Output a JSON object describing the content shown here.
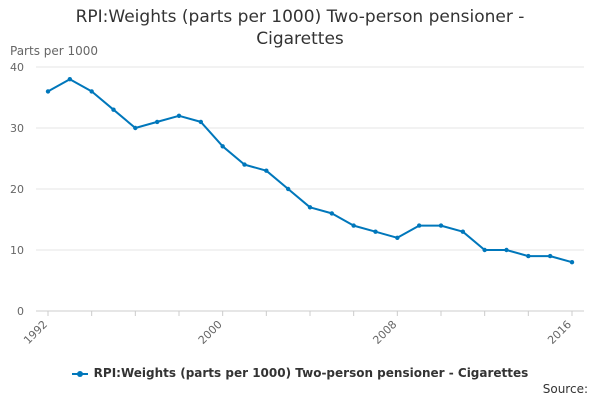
{
  "chart_data": {
    "type": "line",
    "title": "RPI:Weights (parts per 1000) Two-person pensioner - Cigarettes",
    "title_lines": [
      "RPI:Weights (parts per 1000) Two-person pensioner -",
      "Cigarettes"
    ],
    "xlabel": "",
    "ylabel": "Parts per 1000",
    "x": [
      1992,
      1993,
      1994,
      1995,
      1996,
      1997,
      1998,
      1999,
      2000,
      2001,
      2002,
      2003,
      2004,
      2005,
      2006,
      2007,
      2008,
      2009,
      2010,
      2011,
      2012,
      2013,
      2014,
      2015,
      2016
    ],
    "series": [
      {
        "name": "RPI:Weights (parts per 1000) Two-person pensioner - Cigarettes",
        "color": "#0077bb",
        "values": [
          36,
          38,
          36,
          33,
          30,
          31,
          32,
          31,
          27,
          24,
          23,
          20,
          17,
          16,
          14,
          13,
          12,
          14,
          14,
          13,
          10,
          10,
          9,
          9,
          8
        ]
      }
    ],
    "xticks": [
      "1992",
      "2000",
      "2008",
      "2016"
    ],
    "yticks": [
      "0",
      "10",
      "20",
      "30",
      "40"
    ],
    "ylim": [
      0,
      40
    ],
    "xlim": [
      1992,
      2016
    ],
    "grid": true,
    "legend_position": "bottom-center"
  },
  "source_label": "Source:"
}
